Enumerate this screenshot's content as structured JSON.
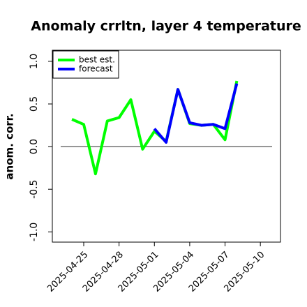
{
  "chart_data": {
    "type": "line",
    "title": "Anomaly crrltn, layer 4 temperature",
    "y_label": "anom. corr.",
    "x": [
      "2025-04-24",
      "2025-04-25",
      "2025-04-26",
      "2025-04-27",
      "2025-04-28",
      "2025-04-29",
      "2025-04-30",
      "2025-05-01",
      "2025-05-02",
      "2025-05-03",
      "2025-05-04",
      "2025-05-05",
      "2025-05-06",
      "2025-05-07",
      "2025-05-08"
    ],
    "series": [
      {
        "name": "best est.",
        "color": "#00ff00",
        "values": [
          0.32,
          0.26,
          -0.32,
          0.3,
          0.34,
          0.55,
          -0.03,
          0.18,
          0.06,
          0.67,
          0.27,
          0.25,
          0.26,
          0.08,
          0.77
        ]
      },
      {
        "name": "forecast",
        "color": "#0000ff",
        "values": [
          null,
          null,
          null,
          null,
          null,
          null,
          null,
          0.21,
          0.05,
          0.67,
          0.28,
          0.25,
          0.26,
          0.21,
          0.74
        ]
      }
    ],
    "hline": 0,
    "xlim": [
      "2025-04-22T08:00",
      "2025-05-11T17:00"
    ],
    "xticks": [
      "2025-04-25",
      "2025-04-28",
      "2025-05-01",
      "2025-05-04",
      "2025-05-07",
      "2025-05-10"
    ],
    "highlight_xtick": "2025-05-01",
    "highlight_color": "#228b22",
    "ylim": [
      -1.12,
      1.13
    ],
    "yticks": [
      {
        "value": -1,
        "label": "-1.0"
      },
      -0.5,
      {
        "value": 0,
        "label": "0.0"
      },
      0.5,
      {
        "value": 1,
        "label": "1.0"
      }
    ],
    "legend": "top-left"
  }
}
